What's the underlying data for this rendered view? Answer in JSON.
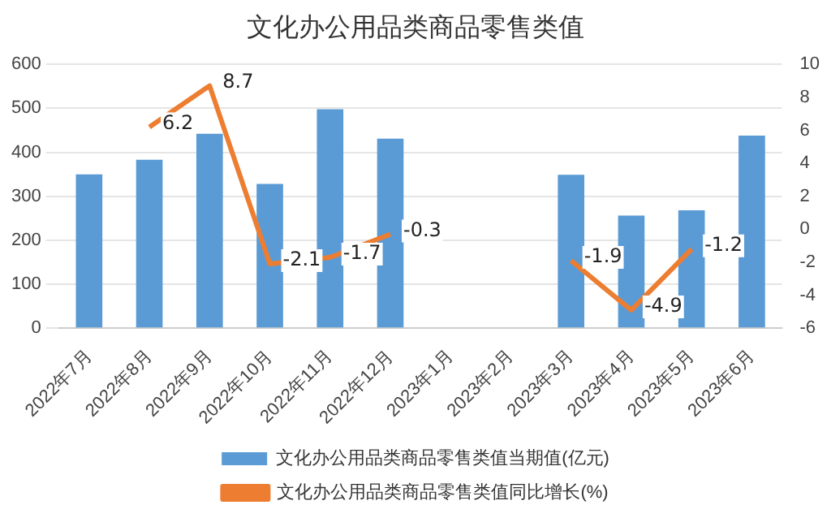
{
  "chart_data": {
    "type": "bar",
    "title": "文化办公用品类商品零售类值",
    "categories": [
      "2022年7月",
      "2022年8月",
      "2022年9月",
      "2022年10月",
      "2022年11月",
      "2022年12月",
      "2023年1月",
      "2023年2月",
      "2023年3月",
      "2023年4月",
      "2023年5月",
      "2023年6月"
    ],
    "series": [
      {
        "name": "文化办公用品类商品零售类值当期值(亿元)",
        "color": "#5b9bd5",
        "values": [
          350,
          383,
          442,
          328,
          498,
          431,
          null,
          null,
          349,
          256,
          268,
          438
        ]
      },
      {
        "name": "文化办公用品类商品零售类值同比增长(%)",
        "type": "line",
        "axis": "y2",
        "color": "#ed7d31",
        "values": [
          null,
          6.2,
          8.7,
          -2.1,
          -1.7,
          -0.3,
          null,
          null,
          -1.9,
          -4.9,
          -1.2,
          null
        ],
        "value_labels": [
          null,
          "6.2",
          "8.7",
          "-2.1",
          "-1.7",
          "-0.3",
          null,
          null,
          "-1.9",
          "-4.9",
          "-1.2",
          null
        ]
      }
    ],
    "ylim": [
      0,
      600
    ],
    "yticks": [
      0,
      100,
      200,
      300,
      400,
      500,
      600
    ],
    "y2lim": [
      -6,
      10
    ],
    "y2ticks": [
      -6,
      -4,
      -2,
      0,
      2,
      4,
      6,
      8,
      10
    ],
    "grid": "y",
    "legend": "bottom",
    "marker": "none"
  }
}
